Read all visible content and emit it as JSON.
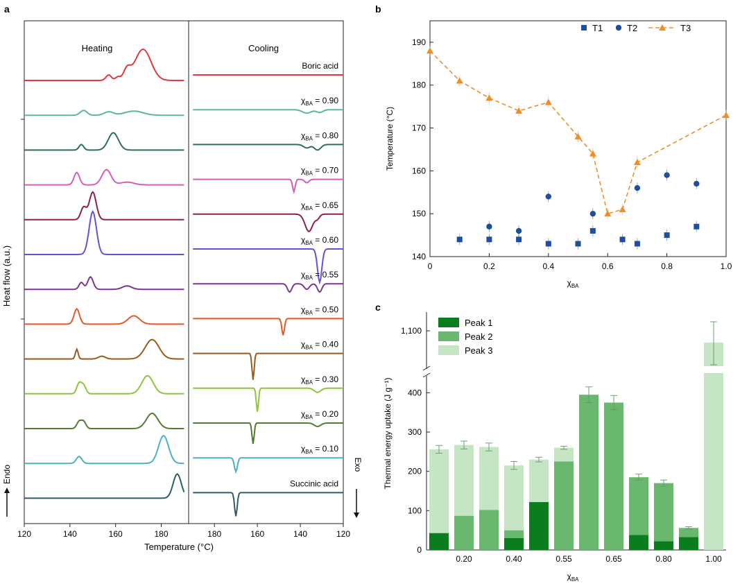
{
  "panel_labels": {
    "a": "a",
    "b": "b",
    "c": "c"
  },
  "chart_data": [
    {
      "panel": "a",
      "type": "line",
      "title": "DSC heating and cooling curves",
      "xlabel": "Temperature (°C)",
      "ylabel": "Heat flow (a.u.)",
      "endo_label": "Endo",
      "exo_label": "Exo",
      "subplots": [
        {
          "name": "Heating",
          "xlim": [
            120,
            192
          ],
          "xticks": [
            120,
            140,
            160,
            180
          ],
          "tick_labels": [
            "120",
            "140",
            "160",
            "180"
          ]
        },
        {
          "name": "Cooling",
          "xlim": [
            192,
            120
          ],
          "xticks": [
            180,
            160,
            140,
            120
          ],
          "tick_labels": [
            "180",
            "160",
            "140",
            "120"
          ]
        }
      ],
      "series": [
        {
          "label": "Boric acid",
          "color": "#e0393b",
          "heating_peaks": [
            [
              107,
              2,
              0.6
            ],
            [
              157,
              8,
              1.2
            ],
            [
              161,
              5,
              1.0
            ],
            [
              165,
              15,
              1.5
            ],
            [
              172,
              45,
              3.5
            ]
          ],
          "cooling_peaks": []
        },
        {
          "label": "χBA = 0.90",
          "label_prefix": "χ",
          "label_sub": "BA",
          "label_value": " = 0.90",
          "color": "#5cb88f",
          "heating_peaks": [
            [
              146,
              7,
              1.5
            ],
            [
              157,
              5,
              2.0
            ],
            [
              168,
              6,
              4.0
            ]
          ],
          "cooling_peaks": [
            [
              137,
              5,
              2.0
            ],
            [
              131,
              4,
              1.5
            ]
          ]
        },
        {
          "label": "χBA = 0.80",
          "label_prefix": "χ",
          "label_sub": "BA",
          "label_value": " = 0.80",
          "color": "#2f6e55",
          "heating_peaks": [
            [
              145,
              8,
              1.0
            ],
            [
              159,
              25,
              2.2
            ]
          ],
          "cooling_peaks": [
            [
              137,
              5,
              1.5
            ],
            [
              132,
              8,
              1.5
            ]
          ]
        },
        {
          "label": "χBA = 0.70",
          "label_prefix": "χ",
          "label_sub": "BA",
          "label_value": " = 0.70",
          "color": "#d75cb8",
          "heating_peaks": [
            [
              143,
              18,
              1.2
            ],
            [
              156,
              22,
              2.0
            ],
            [
              165,
              4,
              3.0
            ]
          ],
          "cooling_peaks": [
            [
              143,
              18,
              0.6
            ],
            [
              137,
              5,
              1.0
            ]
          ]
        },
        {
          "label": "χBA = 0.65",
          "label_prefix": "χ",
          "label_sub": "BA",
          "label_value": " = 0.65",
          "color": "#8e1f4d",
          "heating_peaks": [
            [
              146,
              18,
              1.2
            ],
            [
              150,
              40,
              1.5
            ]
          ],
          "cooling_peaks": [
            [
              136,
              25,
              1.8
            ],
            [
              132,
              6,
              1.0
            ]
          ]
        },
        {
          "label": "χBA = 0.60",
          "label_prefix": "χ",
          "label_sub": "BA",
          "label_value": " = 0.60",
          "color": "#6a4fd4",
          "heating_peaks": [
            [
              150,
              62,
              1.6
            ]
          ],
          "cooling_peaks": [
            [
              131,
              48,
              1.0
            ]
          ]
        },
        {
          "label": "χBA = 0.55",
          "label_prefix": "χ",
          "label_sub": "BA",
          "label_value": " = 0.55",
          "color": "#7a3591",
          "heating_peaks": [
            [
              145,
              10,
              1.0
            ],
            [
              149,
              18,
              1.2
            ],
            [
              165,
              5,
              2.0
            ]
          ],
          "cooling_peaks": [
            [
              145,
              12,
              1.0
            ],
            [
              137,
              8,
              1.2
            ],
            [
              131,
              12,
              1.0
            ]
          ]
        },
        {
          "label": "χBA = 0.50",
          "label_prefix": "χ",
          "label_sub": "BA",
          "label_value": " = 0.50",
          "color": "#e25a23",
          "heating_peaks": [
            [
              143,
              22,
              1.2
            ],
            [
              168,
              12,
              2.5
            ]
          ],
          "cooling_peaks": [
            [
              148,
              24,
              0.6
            ]
          ]
        },
        {
          "label": "χBA = 0.40",
          "label_prefix": "χ",
          "label_sub": "BA",
          "label_value": " = 0.40",
          "color": "#9a5a1c",
          "heating_peaks": [
            [
              143,
              14,
              0.6
            ],
            [
              154,
              4,
              1.5
            ],
            [
              176,
              28,
              3.0
            ]
          ],
          "cooling_peaks": [
            [
              162,
              38,
              0.5
            ]
          ]
        },
        {
          "label": "χBA = 0.30",
          "label_prefix": "χ",
          "label_sub": "BA",
          "label_value": " = 0.30",
          "color": "#8cc63f",
          "heating_peaks": [
            [
              144,
              15,
              1.0
            ],
            [
              146,
              12,
              1.0
            ],
            [
              174,
              26,
              2.5
            ]
          ],
          "cooling_peaks": [
            [
              160,
              34,
              0.5
            ],
            [
              132,
              6,
              1.5
            ]
          ]
        },
        {
          "label": "χBA = 0.20",
          "label_prefix": "χ",
          "label_sub": "BA",
          "label_value": " = 0.20",
          "color": "#527a30",
          "heating_peaks": [
            [
              144,
              10,
              1.0
            ],
            [
              146,
              10,
              1.0
            ],
            [
              176,
              22,
              2.5
            ]
          ],
          "cooling_peaks": [
            [
              162,
              30,
              0.5
            ],
            [
              132,
              5,
              1.5
            ]
          ]
        },
        {
          "label": "χBA = 0.10",
          "label_prefix": "χ",
          "label_sub": "BA",
          "label_value": " = 0.10",
          "color": "#4bb0c4",
          "heating_peaks": [
            [
              144,
              10,
              1.2
            ],
            [
              181,
              40,
              2.2
            ]
          ],
          "cooling_peaks": [
            [
              170,
              20,
              0.7
            ]
          ]
        },
        {
          "label": "Succinic acid",
          "color": "#2f5c6a",
          "heating_peaks": [
            [
              187,
              35,
              1.8
            ]
          ],
          "cooling_peaks": [
            [
              170,
              34,
              0.6
            ]
          ]
        }
      ]
    },
    {
      "panel": "b",
      "type": "scatter",
      "xlabel_prefix": "χ",
      "xlabel_sub": "BA",
      "ylabel": "Temperature (°C)",
      "xlim": [
        0,
        1.0
      ],
      "ylim": [
        140,
        195
      ],
      "xticks": [
        0,
        0.2,
        0.4,
        0.6,
        0.8,
        1.0
      ],
      "xtick_labels": [
        "0",
        "0.2",
        "0.4",
        "0.6",
        "0.8",
        "1.0"
      ],
      "yticks": [
        140,
        150,
        160,
        170,
        180,
        190
      ],
      "ytick_labels": [
        "140",
        "150",
        "160",
        "170",
        "180",
        "190"
      ],
      "series": [
        {
          "name": "T1",
          "marker": "square",
          "color": "#1f4e9a",
          "x": [
            0.1,
            0.2,
            0.3,
            0.4,
            0.5,
            0.55,
            0.65,
            0.7,
            0.8,
            0.9
          ],
          "y": [
            144,
            144,
            144,
            143,
            143,
            146,
            144,
            143,
            145,
            147
          ]
        },
        {
          "name": "T2",
          "marker": "circle",
          "color": "#1f4e9a",
          "x": [
            0.2,
            0.3,
            0.4,
            0.55,
            0.7,
            0.8,
            0.9
          ],
          "y": [
            147,
            146,
            154,
            150,
            156,
            159,
            157
          ]
        },
        {
          "name": "T3",
          "marker": "triangle",
          "color": "#f28c28",
          "dashed_line": true,
          "x": [
            0,
            0.1,
            0.2,
            0.3,
            0.4,
            0.5,
            0.55,
            0.6,
            0.65,
            0.7,
            1.0
          ],
          "y": [
            188,
            181,
            177,
            174,
            176,
            168,
            164,
            150,
            151,
            162,
            173
          ]
        }
      ]
    },
    {
      "panel": "c",
      "type": "bar",
      "stacked": true,
      "xlabel_prefix": "χ",
      "xlabel_sub": "BA",
      "ylabel": "Thermal energy uptake (J g⁻¹)",
      "categories": [
        "0.10",
        "0.20",
        "0.30",
        "0.40",
        "0.50",
        "0.55",
        "0.60",
        "0.65",
        "0.70",
        "0.80",
        "0.90",
        "1.00"
      ],
      "xtick_labels": [
        "0.20",
        "0.40",
        "0.55",
        "0.65",
        "0.80",
        "1.00"
      ],
      "xtick_categories": [
        "0.20",
        "0.40",
        "0.55",
        "0.65",
        "0.80",
        "1.00"
      ],
      "y_break": [
        450,
        1000
      ],
      "yticks": [
        0,
        100,
        200,
        300,
        400,
        1100
      ],
      "ytick_labels": [
        "0",
        "100",
        "200",
        "300",
        "400",
        "1,100"
      ],
      "series": [
        {
          "name": "Peak 1",
          "color": "#0b7d1f",
          "values": [
            43,
            0,
            0,
            30,
            122,
            0,
            0,
            0,
            38,
            22,
            33,
            0
          ]
        },
        {
          "name": "Peak 2",
          "color": "#6ab86f",
          "values": [
            0,
            87,
            102,
            20,
            0,
            225,
            395,
            375,
            147,
            148,
            23,
            0
          ]
        },
        {
          "name": "Peak 3",
          "color": "#c6e5c5",
          "values": [
            213,
            180,
            160,
            165,
            108,
            35,
            0,
            0,
            0,
            0,
            0,
            1080
          ]
        }
      ],
      "totals": [
        256,
        267,
        262,
        215,
        230,
        260,
        395,
        375,
        185,
        170,
        56,
        1080
      ],
      "errors": [
        10,
        10,
        10,
        10,
        6,
        4,
        20,
        18,
        8,
        8,
        3,
        45
      ]
    }
  ]
}
